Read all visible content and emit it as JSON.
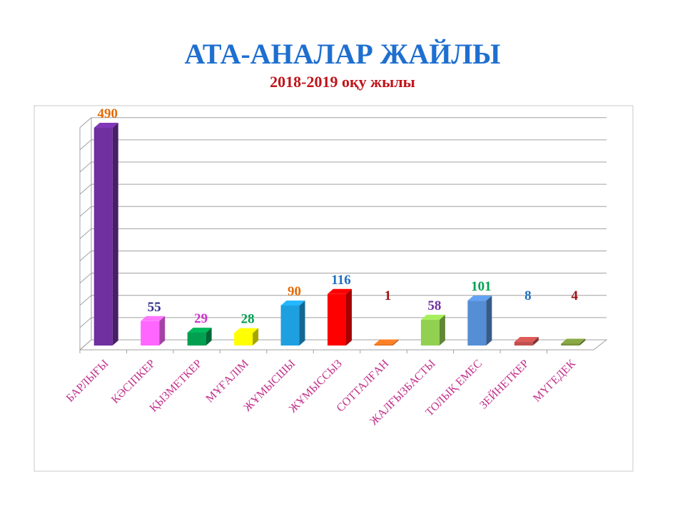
{
  "chart_data": {
    "type": "bar",
    "style": "3d-column",
    "title": "АТА-АНАЛАР ЖАЙЛЫ",
    "subtitle": "2018-2019 оқу жылы",
    "categories": [
      "БАРЛЫҒЫ",
      "КӘСІПКЕР",
      "ҚЫЗМЕТКЕР",
      "МҰҒАЛІМ",
      "ЖҰМЫСШЫ",
      "ЖҰМЫССЫЗ",
      "СОТТАЛҒАН",
      "ЖАЛҒЫЗБАСТЫ",
      "ТОЛЫҚ ЕМЕС",
      "ЗЕЙНЕТКЕР",
      "МҮГЕДЕК"
    ],
    "values": [
      490,
      55,
      29,
      28,
      90,
      116,
      1,
      58,
      101,
      8,
      4
    ],
    "bar_colors": [
      "#7030a0",
      "#ff66ff",
      "#00a050",
      "#ffff00",
      "#1ea0e0",
      "#ff0000",
      "#e07020",
      "#92d050",
      "#558ed5",
      "#c0504d",
      "#77933c"
    ],
    "label_colors": [
      "#e36c09",
      "#2f2f8f",
      "#cc33cc",
      "#00a050",
      "#e36c09",
      "#1f6fbf",
      "#a01010",
      "#7030a0",
      "#00a050",
      "#1f6fbf",
      "#a01010"
    ],
    "category_label_color": "#c0308a",
    "ylim": [
      0,
      500
    ],
    "grid": true,
    "legend": "none"
  }
}
